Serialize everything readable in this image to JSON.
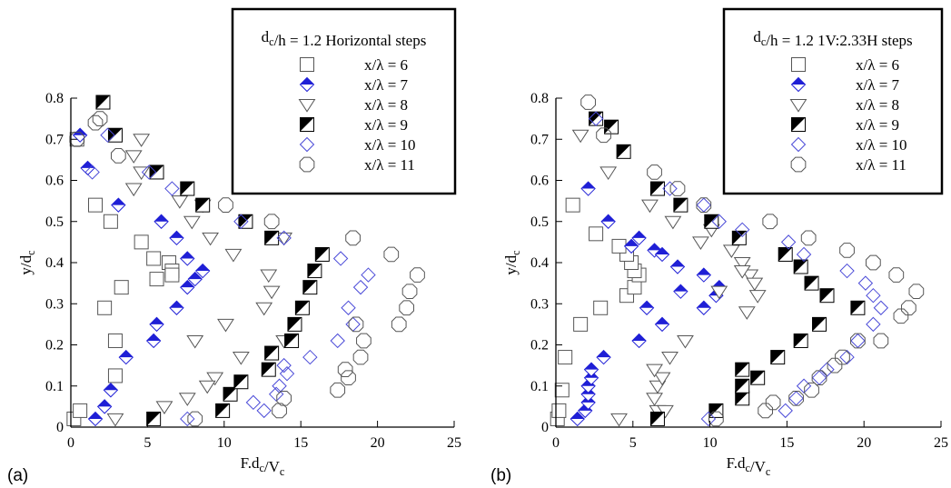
{
  "figure": {
    "panel_labels": [
      "(a)",
      "(b)"
    ]
  },
  "colors": {
    "blue": "#1f1fd6",
    "black": "#000000",
    "open_diamond": "#4a4ad8",
    "open": "#555555"
  },
  "chart_data": [
    {
      "type": "scatter",
      "panel": "(a)",
      "xlabel": "F.dc/Vc",
      "ylabel": "y/dc",
      "xlim": [
        0,
        25
      ],
      "ylim": [
        0,
        0.8
      ],
      "xticks": [
        "0",
        "5",
        "10",
        "15",
        "20",
        "25"
      ],
      "yticks": [
        "0",
        "0.1",
        "0.2",
        "0.3",
        "0.4",
        "0.5",
        "0.6",
        "0.7",
        "0.8"
      ],
      "legend_title": "dc/h = 1.2 Horizontal steps",
      "legend_position": "top-right",
      "grid": false,
      "series": [
        {
          "name": "x/λ = 6",
          "marker": "square",
          "points": [
            [
              0.2,
              0.02
            ],
            [
              0.6,
              0.04
            ],
            [
              2.2,
              0.29
            ],
            [
              2.9,
              0.125
            ],
            [
              2.9,
              0.21
            ],
            [
              3.3,
              0.34
            ],
            [
              1.6,
              0.54
            ],
            [
              2.6,
              0.5
            ],
            [
              4.6,
              0.45
            ],
            [
              5.4,
              0.41
            ],
            [
              5.6,
              0.36
            ],
            [
              6.4,
              0.4
            ],
            [
              6.6,
              0.38
            ],
            [
              6.6,
              0.37
            ],
            [
              0.4,
              0.7
            ]
          ]
        },
        {
          "name": "x/λ = 7",
          "marker": "half-diamond",
          "points": [
            [
              1.6,
              0.02
            ],
            [
              2.2,
              0.05
            ],
            [
              2.6,
              0.09
            ],
            [
              3.6,
              0.17
            ],
            [
              5.4,
              0.21
            ],
            [
              5.6,
              0.25
            ],
            [
              6.9,
              0.29
            ],
            [
              7.6,
              0.34
            ],
            [
              8.1,
              0.36
            ],
            [
              8.6,
              0.38
            ],
            [
              7.6,
              0.41
            ],
            [
              6.9,
              0.46
            ],
            [
              5.9,
              0.5
            ],
            [
              3.1,
              0.54
            ],
            [
              1.1,
              0.63
            ],
            [
              0.6,
              0.71
            ]
          ]
        },
        {
          "name": "x/λ = 8",
          "marker": "triangle-down",
          "points": [
            [
              2.9,
              0.02
            ],
            [
              4.6,
              0.7
            ],
            [
              4.1,
              0.66
            ],
            [
              4.6,
              0.62
            ],
            [
              4.1,
              0.58
            ],
            [
              7.1,
              0.55
            ],
            [
              7.9,
              0.5
            ],
            [
              8.6,
              0.54
            ],
            [
              9.1,
              0.46
            ],
            [
              10.6,
              0.42
            ],
            [
              8.1,
              0.21
            ],
            [
              10.1,
              0.25
            ],
            [
              11.1,
              0.17
            ],
            [
              9.4,
              0.12
            ],
            [
              8.9,
              0.1
            ],
            [
              7.6,
              0.07
            ],
            [
              6.1,
              0.05
            ],
            [
              12.9,
              0.37
            ],
            [
              12.6,
              0.29
            ],
            [
              13.1,
              0.33
            ],
            [
              13.9,
              0.46
            ],
            [
              13.9,
              0.21
            ]
          ]
        },
        {
          "name": "x/λ = 9",
          "marker": "half-square",
          "points": [
            [
              5.4,
              0.02
            ],
            [
              9.9,
              0.04
            ],
            [
              10.4,
              0.08
            ],
            [
              11.1,
              0.11
            ],
            [
              12.9,
              0.14
            ],
            [
              13.1,
              0.18
            ],
            [
              14.4,
              0.21
            ],
            [
              14.6,
              0.25
            ],
            [
              15.1,
              0.29
            ],
            [
              15.6,
              0.34
            ],
            [
              15.9,
              0.38
            ],
            [
              16.4,
              0.42
            ],
            [
              13.1,
              0.46
            ],
            [
              11.4,
              0.5
            ],
            [
              8.6,
              0.54
            ],
            [
              7.6,
              0.58
            ],
            [
              5.6,
              0.62
            ],
            [
              2.9,
              0.71
            ],
            [
              2.1,
              0.79
            ]
          ]
        },
        {
          "name": "x/λ = 10",
          "marker": "diamond",
          "points": [
            [
              7.6,
              0.02
            ],
            [
              11.9,
              0.06
            ],
            [
              12.6,
              0.04
            ],
            [
              13.4,
              0.08
            ],
            [
              13.6,
              0.1
            ],
            [
              14.1,
              0.13
            ],
            [
              13.9,
              0.15
            ],
            [
              15.6,
              0.17
            ],
            [
              17.4,
              0.21
            ],
            [
              18.1,
              0.29
            ],
            [
              18.4,
              0.25
            ],
            [
              18.9,
              0.34
            ],
            [
              19.4,
              0.37
            ],
            [
              17.6,
              0.41
            ],
            [
              13.9,
              0.46
            ],
            [
              11.1,
              0.5
            ],
            [
              6.6,
              0.58
            ],
            [
              5.1,
              0.62
            ],
            [
              1.4,
              0.62
            ],
            [
              2.4,
              0.71
            ]
          ]
        },
        {
          "name": "x/λ = 11",
          "marker": "octagon",
          "points": [
            [
              8.1,
              0.02
            ],
            [
              13.6,
              0.04
            ],
            [
              13.9,
              0.07
            ],
            [
              17.4,
              0.09
            ],
            [
              17.9,
              0.14
            ],
            [
              18.1,
              0.12
            ],
            [
              18.9,
              0.17
            ],
            [
              19.1,
              0.21
            ],
            [
              18.6,
              0.25
            ],
            [
              21.4,
              0.25
            ],
            [
              21.9,
              0.29
            ],
            [
              22.1,
              0.33
            ],
            [
              22.6,
              0.37
            ],
            [
              20.9,
              0.42
            ],
            [
              18.4,
              0.46
            ],
            [
              13.1,
              0.5
            ],
            [
              10.1,
              0.54
            ],
            [
              3.1,
              0.66
            ],
            [
              1.6,
              0.74
            ],
            [
              1.9,
              0.75
            ],
            [
              0.4,
              0.7
            ]
          ]
        }
      ]
    },
    {
      "type": "scatter",
      "panel": "(b)",
      "xlabel": "F.dc/Vc",
      "ylabel": "y/dc",
      "xlim": [
        0,
        25
      ],
      "ylim": [
        0,
        0.8
      ],
      "xticks": [
        "0",
        "5",
        "10",
        "15",
        "20",
        "25"
      ],
      "yticks": [
        "0",
        "0.1",
        "0.2",
        "0.3",
        "0.4",
        "0.5",
        "0.6",
        "0.7",
        "0.8"
      ],
      "legend_title": "dc/h = 1.2 1V:2.33H steps",
      "legend_position": "top-right",
      "grid": false,
      "series": [
        {
          "name": "x/λ = 6",
          "marker": "square",
          "points": [
            [
              0.1,
              0.02
            ],
            [
              0.2,
              0.04
            ],
            [
              0.4,
              0.09
            ],
            [
              0.6,
              0.17
            ],
            [
              1.6,
              0.25
            ],
            [
              2.9,
              0.29
            ],
            [
              4.6,
              0.32
            ],
            [
              5.1,
              0.34
            ],
            [
              5.4,
              0.37
            ],
            [
              5.1,
              0.38
            ],
            [
              4.9,
              0.4
            ],
            [
              4.6,
              0.42
            ],
            [
              4.1,
              0.44
            ],
            [
              2.6,
              0.47
            ],
            [
              1.1,
              0.54
            ]
          ]
        },
        {
          "name": "x/λ = 7",
          "marker": "half-diamond",
          "points": [
            [
              1.4,
              0.02
            ],
            [
              1.9,
              0.04
            ],
            [
              2.1,
              0.06
            ],
            [
              2.1,
              0.08
            ],
            [
              2.1,
              0.1
            ],
            [
              2.3,
              0.12
            ],
            [
              2.3,
              0.14
            ],
            [
              3.1,
              0.17
            ],
            [
              5.4,
              0.21
            ],
            [
              6.9,
              0.25
            ],
            [
              5.9,
              0.29
            ],
            [
              8.1,
              0.33
            ],
            [
              4.9,
              0.44
            ],
            [
              5.4,
              0.46
            ],
            [
              6.4,
              0.43
            ],
            [
              7.9,
              0.39
            ],
            [
              9.6,
              0.37
            ],
            [
              10.6,
              0.34
            ],
            [
              10.4,
              0.32
            ],
            [
              9.6,
              0.29
            ],
            [
              6.9,
              0.42
            ],
            [
              3.4,
              0.5
            ],
            [
              2.1,
              0.58
            ]
          ]
        },
        {
          "name": "x/λ = 8",
          "marker": "triangle-down",
          "points": [
            [
              4.1,
              0.02
            ],
            [
              6.6,
              0.04
            ],
            [
              6.4,
              0.07
            ],
            [
              6.6,
              0.1
            ],
            [
              6.9,
              0.12
            ],
            [
              6.4,
              0.14
            ],
            [
              7.4,
              0.17
            ],
            [
              8.4,
              0.21
            ],
            [
              1.6,
              0.71
            ],
            [
              3.4,
              0.62
            ],
            [
              6.1,
              0.54
            ],
            [
              7.6,
              0.5
            ],
            [
              9.4,
              0.45
            ],
            [
              10.1,
              0.48
            ],
            [
              10.6,
              0.33
            ],
            [
              11.4,
              0.43
            ],
            [
              12.1,
              0.4
            ],
            [
              12.6,
              0.37
            ],
            [
              12.9,
              0.35
            ],
            [
              13.1,
              0.32
            ],
            [
              12.4,
              0.28
            ],
            [
              7.1,
              0.04
            ],
            [
              12.1,
              0.38
            ]
          ]
        },
        {
          "name": "x/λ = 9",
          "marker": "half-square",
          "points": [
            [
              6.6,
              0.02
            ],
            [
              10.4,
              0.04
            ],
            [
              12.1,
              0.07
            ],
            [
              12.1,
              0.1
            ],
            [
              12.1,
              0.14
            ],
            [
              13.1,
              0.12
            ],
            [
              14.4,
              0.17
            ],
            [
              15.9,
              0.21
            ],
            [
              17.1,
              0.25
            ],
            [
              19.6,
              0.29
            ],
            [
              17.6,
              0.32
            ],
            [
              16.6,
              0.35
            ],
            [
              15.9,
              0.39
            ],
            [
              14.9,
              0.42
            ],
            [
              11.9,
              0.46
            ],
            [
              10.1,
              0.5
            ],
            [
              8.1,
              0.54
            ],
            [
              6.6,
              0.58
            ],
            [
              4.4,
              0.67
            ],
            [
              3.6,
              0.73
            ],
            [
              2.6,
              0.75
            ]
          ]
        },
        {
          "name": "x/λ = 10",
          "marker": "diamond",
          "points": [
            [
              9.9,
              0.02
            ],
            [
              14.9,
              0.04
            ],
            [
              15.6,
              0.07
            ],
            [
              16.1,
              0.1
            ],
            [
              17.1,
              0.12
            ],
            [
              17.6,
              0.14
            ],
            [
              18.9,
              0.17
            ],
            [
              19.6,
              0.21
            ],
            [
              20.6,
              0.25
            ],
            [
              21.1,
              0.29
            ],
            [
              20.6,
              0.32
            ],
            [
              20.1,
              0.35
            ],
            [
              18.9,
              0.38
            ],
            [
              16.1,
              0.42
            ],
            [
              15.1,
              0.45
            ],
            [
              12.1,
              0.48
            ],
            [
              10.6,
              0.5
            ],
            [
              9.6,
              0.54
            ],
            [
              7.4,
              0.58
            ],
            [
              2.6,
              0.75
            ]
          ]
        },
        {
          "name": "x/λ = 11",
          "marker": "octagon",
          "points": [
            [
              10.4,
              0.02
            ],
            [
              13.6,
              0.04
            ],
            [
              15.6,
              0.07
            ],
            [
              16.6,
              0.09
            ],
            [
              17.1,
              0.12
            ],
            [
              18.1,
              0.15
            ],
            [
              18.6,
              0.17
            ],
            [
              19.6,
              0.21
            ],
            [
              21.1,
              0.21
            ],
            [
              22.4,
              0.27
            ],
            [
              22.9,
              0.29
            ],
            [
              23.4,
              0.33
            ],
            [
              22.1,
              0.37
            ],
            [
              20.6,
              0.4
            ],
            [
              18.9,
              0.43
            ],
            [
              16.4,
              0.46
            ],
            [
              13.9,
              0.5
            ],
            [
              9.6,
              0.54
            ],
            [
              7.9,
              0.58
            ],
            [
              6.4,
              0.62
            ],
            [
              3.1,
              0.71
            ],
            [
              2.1,
              0.79
            ],
            [
              14.1,
              0.06
            ]
          ]
        }
      ]
    }
  ]
}
